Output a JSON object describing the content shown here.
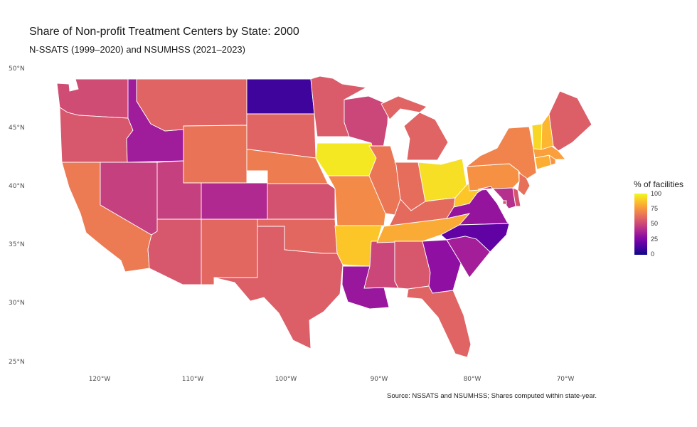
{
  "title": "Share of Non-profit Treatment Centers by State: 2000",
  "subtitle": "N-SSATS (1999–2020) and NSUMHSS (2021–2023)",
  "caption": "Source: NSSATS and NSUMHSS; Shares computed within state-year.",
  "legend": {
    "title": "% of facilities",
    "ticks": [
      "100",
      "75",
      "50",
      "25",
      "0"
    ],
    "palette": "plasma",
    "colors": [
      "#0d0887",
      "#7e03a8",
      "#cc4778",
      "#f89540",
      "#f0f921"
    ]
  },
  "axes": {
    "lat_labels": [
      "50°N",
      "45°N",
      "40°N",
      "35°N",
      "30°N",
      "25°N"
    ],
    "lon_labels": [
      "120°W",
      "110°W",
      "100°W",
      "90°W",
      "80°W",
      "70°W"
    ]
  },
  "chart_data": {
    "type": "choropleth",
    "metric": "% of facilities",
    "scale": [
      0,
      100
    ],
    "states": [
      {
        "state": "Washington",
        "value": 52
      },
      {
        "state": "Oregon",
        "value": 56
      },
      {
        "state": "California",
        "value": 67
      },
      {
        "state": "Nevada",
        "value": 48
      },
      {
        "state": "Idaho",
        "value": 35
      },
      {
        "state": "Montana",
        "value": 60
      },
      {
        "state": "Wyoming",
        "value": 65
      },
      {
        "state": "Utah",
        "value": 48
      },
      {
        "state": "Arizona",
        "value": 56
      },
      {
        "state": "Colorado",
        "value": 40
      },
      {
        "state": "New Mexico",
        "value": 61
      },
      {
        "state": "North Dakota",
        "value": 10
      },
      {
        "state": "South Dakota",
        "value": 60
      },
      {
        "state": "Nebraska",
        "value": 68
      },
      {
        "state": "Kansas",
        "value": 54
      },
      {
        "state": "Oklahoma",
        "value": 61
      },
      {
        "state": "Texas",
        "value": 58
      },
      {
        "state": "Minnesota",
        "value": 57
      },
      {
        "state": "Iowa",
        "value": 96
      },
      {
        "state": "Missouri",
        "value": 72
      },
      {
        "state": "Arkansas",
        "value": 88
      },
      {
        "state": "Louisiana",
        "value": 33
      },
      {
        "state": "Wisconsin",
        "value": 50
      },
      {
        "state": "Illinois",
        "value": 66
      },
      {
        "state": "Mississippi",
        "value": 50
      },
      {
        "state": "Michigan",
        "value": 60
      },
      {
        "state": "Indiana",
        "value": 63
      },
      {
        "state": "Kentucky",
        "value": 62
      },
      {
        "state": "Tennessee",
        "value": 81
      },
      {
        "state": "Alabama",
        "value": 56
      },
      {
        "state": "Ohio",
        "value": 94
      },
      {
        "state": "West Virginia",
        "value": 88
      },
      {
        "state": "Virginia",
        "value": 32
      },
      {
        "state": "North Carolina",
        "value": 18
      },
      {
        "state": "South Carolina",
        "value": 36
      },
      {
        "state": "Georgia",
        "value": 30
      },
      {
        "state": "Florida",
        "value": 60
      },
      {
        "state": "Pennsylvania",
        "value": 74
      },
      {
        "state": "New York",
        "value": 70
      },
      {
        "state": "Maryland",
        "value": 42
      },
      {
        "state": "Delaware",
        "value": 55
      },
      {
        "state": "New Jersey",
        "value": 64
      },
      {
        "state": "Connecticut",
        "value": 82
      },
      {
        "state": "Rhode Island",
        "value": 75
      },
      {
        "state": "Massachusetts",
        "value": 78
      },
      {
        "state": "Vermont",
        "value": 92
      },
      {
        "state": "New Hampshire",
        "value": 84
      },
      {
        "state": "Maine",
        "value": 58
      },
      {
        "state": "District of Columbia",
        "value": 55
      }
    ]
  }
}
